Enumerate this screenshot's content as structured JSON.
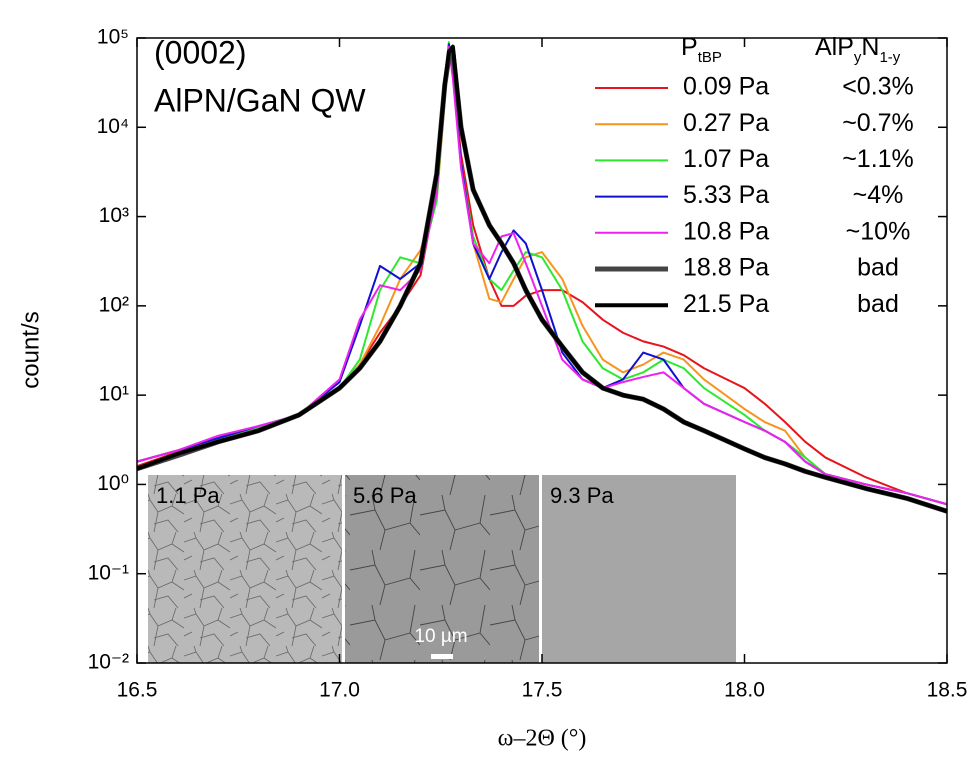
{
  "chart_data": {
    "type": "line",
    "log_y": true,
    "annotations": [
      "(0002)",
      "AlPN/GaN QW"
    ],
    "x_label": "ω–2Θ  (°)",
    "y_label": "count/s",
    "xlim": [
      16.5,
      18.5
    ],
    "xticks": [
      16.5,
      17.0,
      17.5,
      18.0,
      18.5
    ],
    "ylim": [
      0.01,
      100000
    ],
    "yticks": [
      {
        "value": 0.01,
        "label": "10⁻²"
      },
      {
        "value": 0.1,
        "label": "10⁻¹"
      },
      {
        "value": 1,
        "label": "10⁰"
      },
      {
        "value": 10,
        "label": "10¹"
      },
      {
        "value": 100,
        "label": "10²"
      },
      {
        "value": 1000,
        "label": "10³"
      },
      {
        "value": 10000,
        "label": "10⁴"
      },
      {
        "value": 100000,
        "label": "10⁵"
      }
    ],
    "legend_headers": [
      [
        {
          "text": "P",
          "sub": false
        },
        {
          "text": "tBP",
          "sub": true
        }
      ],
      [
        {
          "text": "AlP",
          "sub": false
        },
        {
          "text": "y",
          "sub": true
        },
        {
          "text": "N",
          "sub": false
        },
        {
          "text": "1-y",
          "sub": true
        }
      ]
    ],
    "legend_position": "upper right",
    "insets": [
      {
        "label": "1.1 Pa",
        "color": "#b9b9b9"
      },
      {
        "label": "5.6 Pa",
        "color": "#9a9a9a"
      },
      {
        "label": "9.3 Pa",
        "color": "#a6a6a6"
      }
    ],
    "scale_bar": "10 µm",
    "x": [
      16.5,
      16.6,
      16.7,
      16.8,
      16.9,
      17.0,
      17.05,
      17.1,
      17.15,
      17.2,
      17.24,
      17.26,
      17.27,
      17.28,
      17.3,
      17.33,
      17.37,
      17.4,
      17.43,
      17.46,
      17.5,
      17.55,
      17.6,
      17.65,
      17.7,
      17.75,
      17.8,
      17.85,
      17.9,
      18.0,
      18.05,
      18.1,
      18.15,
      18.2,
      18.3,
      18.4,
      18.5
    ],
    "series": [
      {
        "name": "0.09 Pa",
        "composition": "<0.3%",
        "color": "#e8141c",
        "line_width": 2,
        "values": [
          1.6,
          2.3,
          3.2,
          4.2,
          6,
          12,
          22,
          50,
          100,
          220,
          2000,
          30000,
          80000,
          40000,
          5000,
          800,
          200,
          100,
          100,
          130,
          150,
          150,
          110,
          70,
          50,
          40,
          35,
          28,
          20,
          12,
          8,
          5,
          3,
          2,
          1.2,
          0.8,
          0.6
        ]
      },
      {
        "name": "0.27 Pa",
        "composition": "~0.7%",
        "color": "#f7941d",
        "line_width": 2,
        "values": [
          1.8,
          2.4,
          3.3,
          4.3,
          6,
          12,
          22,
          60,
          200,
          420,
          1500,
          20000,
          85000,
          40000,
          4000,
          500,
          120,
          110,
          200,
          350,
          400,
          200,
          60,
          25,
          18,
          22,
          30,
          25,
          15,
          7,
          5,
          4,
          2,
          1.3,
          1,
          0.8,
          0.6
        ]
      },
      {
        "name": "1.07 Pa",
        "composition": "~1.1%",
        "color": "#2ee82e",
        "line_width": 2,
        "values": [
          1.8,
          2.4,
          3.3,
          4.3,
          6,
          12,
          25,
          150,
          350,
          300,
          1500,
          25000,
          90000,
          40000,
          4000,
          600,
          200,
          150,
          250,
          400,
          350,
          150,
          40,
          20,
          15,
          18,
          25,
          20,
          12,
          6,
          4,
          3,
          2,
          1.3,
          1,
          0.8,
          0.6
        ]
      },
      {
        "name": "5.33 Pa",
        "composition": "~4%",
        "color": "#1010d0",
        "line_width": 2,
        "values": [
          1.8,
          2.4,
          3.3,
          4.5,
          6,
          14,
          60,
          280,
          200,
          300,
          2000,
          30000,
          85000,
          40000,
          4000,
          500,
          200,
          400,
          700,
          500,
          150,
          30,
          15,
          12,
          15,
          30,
          25,
          12,
          8,
          5,
          4,
          3,
          1.8,
          1.3,
          1,
          0.8,
          0.6
        ]
      },
      {
        "name": "10.8 Pa",
        "composition": "~10%",
        "color": "#ee22ee",
        "line_width": 2,
        "values": [
          1.8,
          2.4,
          3.5,
          4.5,
          6,
          15,
          70,
          170,
          150,
          250,
          1800,
          25000,
          80000,
          35000,
          3500,
          500,
          300,
          600,
          650,
          300,
          100,
          25,
          15,
          12,
          14,
          16,
          18,
          12,
          8,
          5,
          4,
          3,
          1.8,
          1.3,
          1,
          0.8,
          0.6
        ]
      },
      {
        "name": "18.8 Pa",
        "composition": "bad",
        "color": "#444444",
        "line_width": 5,
        "values": [
          1.5,
          2.1,
          3,
          4,
          6,
          12,
          20,
          40,
          100,
          300,
          3000,
          30000,
          60000,
          70000,
          10000,
          2000,
          800,
          500,
          300,
          150,
          70,
          35,
          18,
          12,
          10,
          9,
          7,
          5,
          4,
          2.5,
          2,
          1.7,
          1.4,
          1.2,
          0.9,
          0.7,
          0.5
        ]
      },
      {
        "name": "21.5 Pa",
        "composition": "bad",
        "color": "#000000",
        "line_width": 4,
        "values": [
          1.5,
          2.2,
          3,
          4,
          6,
          12,
          20,
          40,
          100,
          300,
          3000,
          30000,
          70000,
          80000,
          10000,
          2000,
          800,
          500,
          300,
          150,
          70,
          35,
          18,
          12,
          10,
          9,
          7,
          5,
          4,
          2.5,
          2,
          1.7,
          1.4,
          1.2,
          0.9,
          0.7,
          0.5
        ]
      }
    ]
  }
}
